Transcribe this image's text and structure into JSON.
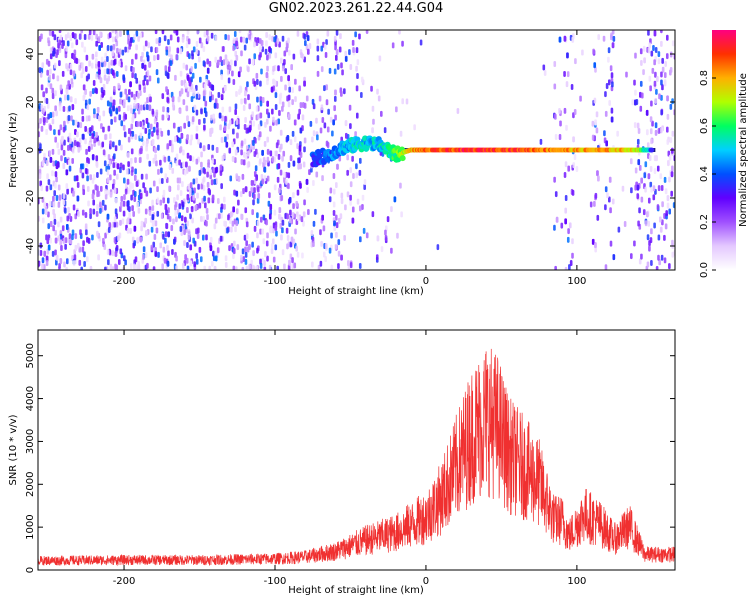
{
  "title": "GN02.2023.261.22.44.G04",
  "chart_data": [
    {
      "type": "heatmap",
      "title": "",
      "xlabel": "Height of straight line (km)",
      "ylabel": "Frequency (Hz)",
      "xlim": [
        -257,
        165
      ],
      "ylim": [
        -50,
        50
      ],
      "xticks": [
        -200,
        -100,
        0,
        100
      ],
      "yticks": [
        -40,
        -20,
        0,
        20,
        40
      ],
      "colorbar": {
        "label": "Normalized spectral amplitude",
        "range": [
          0,
          1
        ],
        "ticks": [
          0.0,
          0.2,
          0.4,
          0.6,
          0.8
        ],
        "colors": [
          "#ffffff",
          "#e4c8ff",
          "#a050ff",
          "#6000ff",
          "#0050ff",
          "#00d0ff",
          "#00ff60",
          "#b0ff00",
          "#ffb000",
          "#ff3000",
          "#ff0080"
        ]
      },
      "signal_track": [
        {
          "x": -75,
          "y": -4,
          "amp": 0.35
        },
        {
          "x": -65,
          "y": -2,
          "amp": 0.4
        },
        {
          "x": -55,
          "y": 1,
          "amp": 0.45
        },
        {
          "x": -48,
          "y": 2,
          "amp": 0.5
        },
        {
          "x": -40,
          "y": 3,
          "amp": 0.5
        },
        {
          "x": -30,
          "y": 2,
          "amp": 0.5
        },
        {
          "x": -20,
          "y": -2,
          "amp": 0.6
        },
        {
          "x": -10,
          "y": 0,
          "amp": 0.8
        },
        {
          "x": 0,
          "y": 0,
          "amp": 0.85
        },
        {
          "x": 20,
          "y": 0,
          "amp": 0.9
        },
        {
          "x": 40,
          "y": 0,
          "amp": 0.92
        },
        {
          "x": 60,
          "y": 0,
          "amp": 0.9
        },
        {
          "x": 80,
          "y": 0,
          "amp": 0.85
        },
        {
          "x": 100,
          "y": 0,
          "amp": 0.8
        },
        {
          "x": 120,
          "y": 0,
          "amp": 0.8
        },
        {
          "x": 140,
          "y": 0,
          "amp": 0.75
        },
        {
          "x": 150,
          "y": 0,
          "amp": 0.4
        }
      ]
    },
    {
      "type": "line",
      "title": "",
      "xlabel": "Height of straight line (km)",
      "ylabel": "SNR (10 * v/v)",
      "xlim": [
        -257,
        165
      ],
      "ylim": [
        0,
        5600
      ],
      "xticks": [
        -200,
        -100,
        0,
        100
      ],
      "yticks": [
        0,
        1000,
        2000,
        3000,
        4000,
        5000
      ],
      "series": [
        {
          "color": "#f03030",
          "envelope": [
            {
              "x": -257,
              "y": 300
            },
            {
              "x": -200,
              "y": 320
            },
            {
              "x": -150,
              "y": 320
            },
            {
              "x": -100,
              "y": 360
            },
            {
              "x": -80,
              "y": 420
            },
            {
              "x": -60,
              "y": 600
            },
            {
              "x": -40,
              "y": 950
            },
            {
              "x": -20,
              "y": 1200
            },
            {
              "x": 0,
              "y": 1700
            },
            {
              "x": 10,
              "y": 2300
            },
            {
              "x": 20,
              "y": 3300
            },
            {
              "x": 30,
              "y": 4300
            },
            {
              "x": 40,
              "y": 4900
            },
            {
              "x": 48,
              "y": 4600
            },
            {
              "x": 55,
              "y": 3700
            },
            {
              "x": 65,
              "y": 3300
            },
            {
              "x": 75,
              "y": 2800
            },
            {
              "x": 85,
              "y": 1600
            },
            {
              "x": 90,
              "y": 1600
            },
            {
              "x": 95,
              "y": 1100
            },
            {
              "x": 105,
              "y": 1800
            },
            {
              "x": 115,
              "y": 1500
            },
            {
              "x": 125,
              "y": 1000
            },
            {
              "x": 135,
              "y": 1400
            },
            {
              "x": 145,
              "y": 500
            },
            {
              "x": 165,
              "y": 500
            }
          ]
        }
      ]
    }
  ]
}
